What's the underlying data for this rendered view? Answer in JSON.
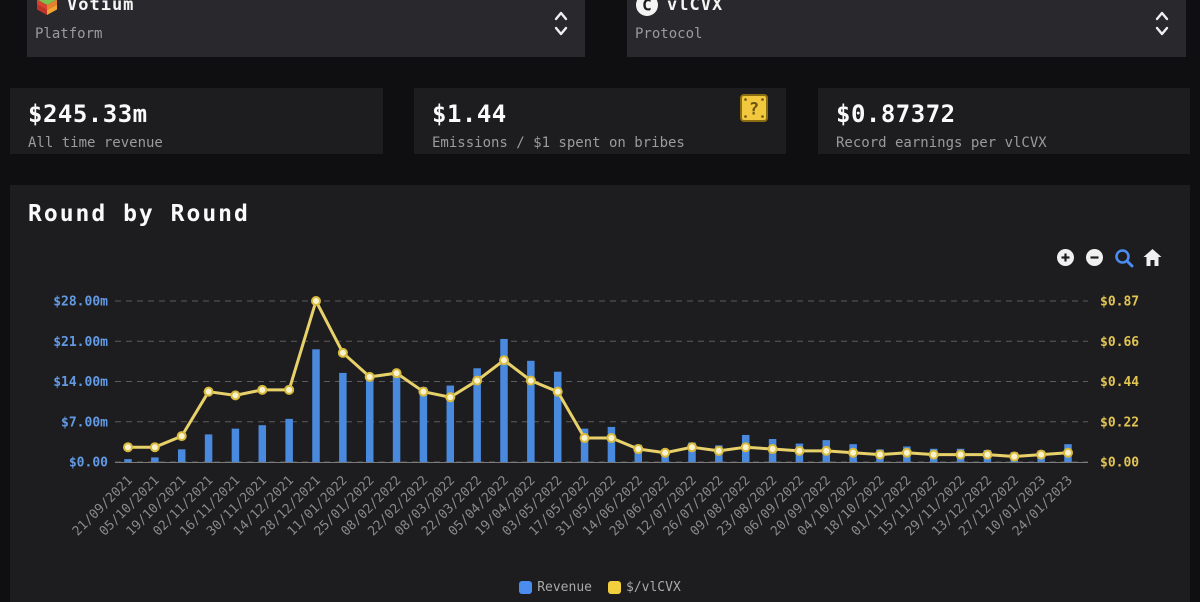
{
  "filters": {
    "platform": {
      "title": "Votium",
      "subtitle": "Platform",
      "icon": "votium-cube-icon"
    },
    "protocol": {
      "title": "vlCVX",
      "subtitle": "Protocol",
      "icon": "convex-circle-icon"
    }
  },
  "stats": [
    {
      "value": "$245.33m",
      "label": "All time revenue"
    },
    {
      "value": "$1.44",
      "label": "Emissions / $1 spent on bribes",
      "help_icon": "question-block-icon"
    },
    {
      "value": "$0.87372",
      "label": "Record earnings per vlCVX"
    }
  ],
  "chart": {
    "title": "Round by Round",
    "toolbar": [
      "zoom-in-icon",
      "zoom-out-icon",
      "selection-zoom-icon",
      "home-icon"
    ]
  },
  "chart_data": {
    "type": "bar+line",
    "title": "Round by Round",
    "categories": [
      "21/09/2021",
      "05/10/2021",
      "19/10/2021",
      "02/11/2021",
      "16/11/2021",
      "30/11/2021",
      "14/12/2021",
      "28/12/2021",
      "11/01/2022",
      "25/01/2022",
      "08/02/2022",
      "22/02/2022",
      "08/03/2022",
      "22/03/2022",
      "05/04/2022",
      "19/04/2022",
      "03/05/2022",
      "17/05/2022",
      "31/05/2022",
      "14/06/2022",
      "28/06/2022",
      "12/07/2022",
      "26/07/2022",
      "09/08/2022",
      "23/08/2022",
      "06/09/2022",
      "20/09/2022",
      "04/10/2022",
      "18/10/2022",
      "01/11/2022",
      "15/11/2022",
      "29/11/2022",
      "13/12/2022",
      "27/12/2022",
      "10/01/2023",
      "24/01/2023"
    ],
    "series": [
      {
        "name": "Revenue",
        "type": "bar",
        "axis": "left",
        "unit": "million $",
        "color": "#4a8ade",
        "values": [
          0.5,
          0.8,
          2.2,
          4.8,
          5.8,
          6.4,
          7.5,
          19.6,
          15.5,
          14.2,
          15.5,
          13.0,
          13.3,
          16.3,
          21.4,
          17.6,
          15.7,
          5.8,
          6.1,
          3.0,
          2.0,
          3.4,
          2.9,
          4.7,
          4.0,
          3.2,
          3.8,
          3.1,
          2.2,
          2.7,
          2.3,
          2.3,
          2.1,
          1.7,
          2.0,
          3.1
        ]
      },
      {
        "name": "$/vlCVX",
        "type": "line",
        "axis": "right",
        "unit": "$",
        "color": "#e8d16a",
        "marker_fill": "#f8f2cf",
        "marker_stroke": "#d9ba3c",
        "values": [
          0.08,
          0.08,
          0.14,
          0.38,
          0.36,
          0.39,
          0.39,
          0.87,
          0.59,
          0.46,
          0.48,
          0.38,
          0.35,
          0.44,
          0.55,
          0.44,
          0.38,
          0.13,
          0.13,
          0.07,
          0.05,
          0.08,
          0.06,
          0.08,
          0.07,
          0.06,
          0.06,
          0.05,
          0.04,
          0.05,
          0.04,
          0.04,
          0.04,
          0.03,
          0.04,
          0.05
        ]
      }
    ],
    "left_axis": {
      "ticks": [
        "$28.00m",
        "$21.00m",
        "$14.00m",
        "$7.00m",
        "$0.00"
      ],
      "max": 28,
      "min": 0,
      "color": "#639ae4"
    },
    "right_axis": {
      "ticks": [
        "$0.87",
        "$0.66",
        "$0.44",
        "$0.22",
        "$0.00"
      ],
      "max": 0.87,
      "min": 0,
      "color": "#e2c452"
    },
    "grid": {
      "on": true,
      "style": "dashed",
      "color": "#5c5c5c"
    },
    "x_label_color": "#8a8a8a",
    "legend": [
      {
        "label": "Revenue",
        "color": "#4a8cf0"
      },
      {
        "label": "$/vlCVX",
        "color": "#f2cf3e"
      }
    ],
    "legend_position": "bottom"
  }
}
